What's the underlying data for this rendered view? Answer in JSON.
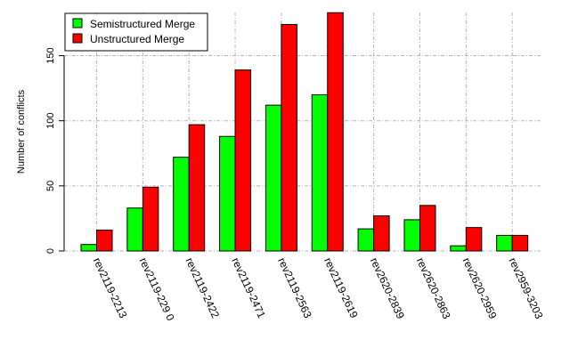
{
  "chart_data": {
    "type": "bar",
    "title": "",
    "xlabel": "",
    "ylabel": "Number of conflicts",
    "categories": [
      "rev2119-2213",
      "rev2119-229 0",
      "rev2119-2422",
      "rev2119-2471",
      "rev2119-2563",
      "rev2119-2619",
      "rev2620-2839",
      "rev2620-2863",
      "rev2620-2959",
      "rev2959-3203"
    ],
    "series": [
      {
        "name": "Semistructured Merge",
        "color": "#00ff00",
        "values": [
          5,
          33,
          72,
          88,
          112,
          120,
          17,
          24,
          4,
          12
        ]
      },
      {
        "name": "Unstructured Merge",
        "color": "#ff0000",
        "values": [
          16,
          49,
          97,
          139,
          174,
          183,
          27,
          35,
          18,
          12
        ]
      }
    ],
    "yticks": [
      0,
      50,
      100,
      150
    ],
    "ylim": [
      0,
      183
    ],
    "grid": true,
    "legend_position": "top-left"
  }
}
